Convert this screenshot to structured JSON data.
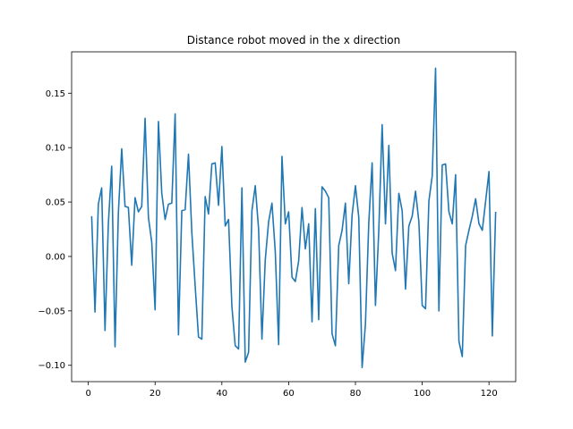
{
  "chart_data": {
    "type": "line",
    "title": "Distance robot moved in the x direction",
    "xlabel": "",
    "ylabel": "",
    "xlim": [
      -5,
      128
    ],
    "ylim": [
      -0.115,
      0.188
    ],
    "xticks": [
      0,
      20,
      40,
      60,
      80,
      100,
      120
    ],
    "yticks": [
      -0.1,
      -0.05,
      0.0,
      0.05,
      0.1,
      0.15
    ],
    "ytick_labels": [
      "−0.10",
      "−0.05",
      "0.00",
      "0.05",
      "0.10",
      "0.15"
    ],
    "grid": false,
    "line_color": "#1f77b4",
    "x_start": 1,
    "x_step": 1,
    "series": [
      {
        "values": [
          0.037,
          -0.051,
          0.048,
          0.063,
          -0.068,
          0.03,
          0.083,
          -0.083,
          0.04,
          0.099,
          0.046,
          0.045,
          -0.008,
          0.054,
          0.041,
          0.046,
          0.127,
          0.036,
          0.013,
          -0.049,
          0.124,
          0.058,
          0.034,
          0.048,
          0.049,
          0.131,
          -0.072,
          0.042,
          0.043,
          0.094,
          0.022,
          -0.027,
          -0.074,
          -0.076,
          0.055,
          0.039,
          0.085,
          0.086,
          0.047,
          0.101,
          0.028,
          0.034,
          -0.046,
          -0.082,
          -0.085,
          0.063,
          -0.097,
          -0.088,
          0.042,
          0.065,
          0.025,
          -0.076,
          -0.003,
          0.032,
          0.049,
          0.004,
          -0.081,
          0.092,
          0.03,
          0.041,
          -0.019,
          -0.023,
          -0.004,
          0.045,
          0.007,
          0.03,
          -0.06,
          0.044,
          -0.058,
          0.064,
          0.06,
          0.054,
          -0.071,
          -0.082,
          0.01,
          0.024,
          0.049,
          -0.025,
          0.038,
          0.065,
          0.036,
          -0.102,
          -0.062,
          0.031,
          0.086,
          -0.045,
          0.024,
          0.121,
          0.03,
          0.102,
          0.003,
          -0.013,
          0.058,
          0.042,
          -0.03,
          0.028,
          0.037,
          0.06,
          0.032,
          -0.045,
          -0.048,
          0.051,
          0.074,
          0.173,
          -0.05,
          0.084,
          0.085,
          0.041,
          0.03,
          0.075,
          -0.078,
          -0.092,
          0.01,
          0.024,
          0.037,
          0.053,
          0.03,
          0.024,
          0.051,
          0.078,
          -0.073,
          0.041
        ]
      }
    ]
  }
}
